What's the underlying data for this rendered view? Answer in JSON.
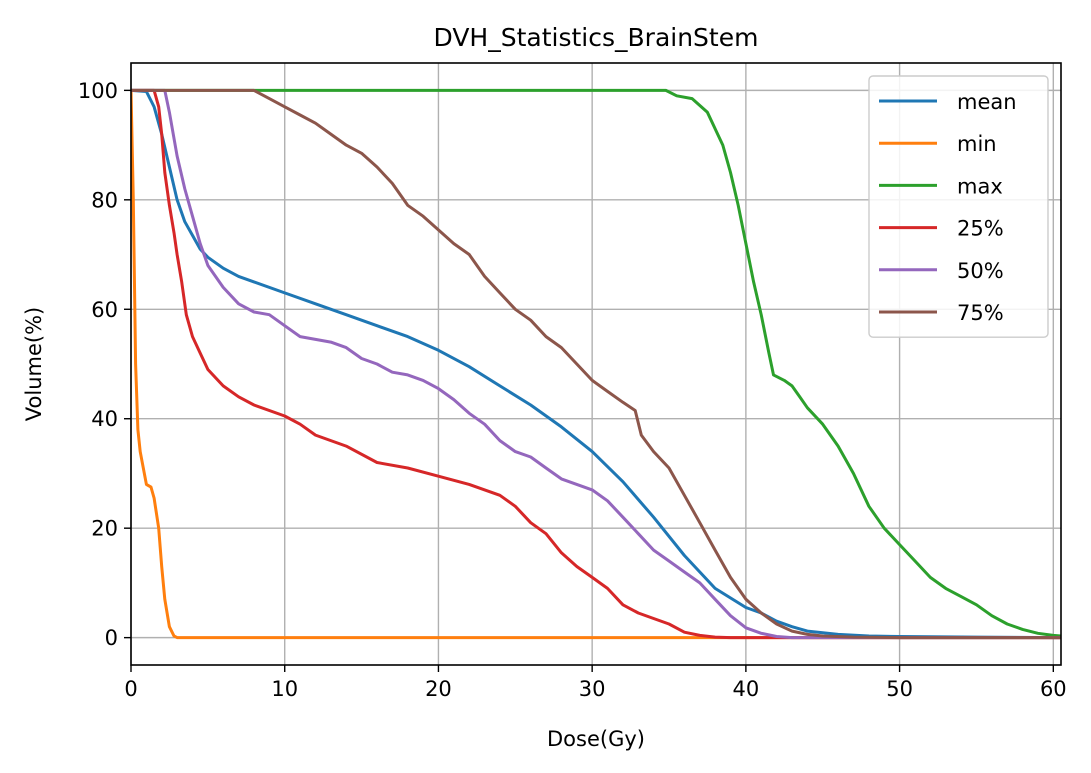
{
  "chart_data": {
    "type": "line",
    "title": "DVH_Statistics_BrainStem",
    "xlabel": "Dose(Gy)",
    "ylabel": "Volume(%)",
    "xlim": [
      0,
      60.5
    ],
    "ylim": [
      -5,
      105
    ],
    "xticks": [
      0,
      10,
      20,
      30,
      40,
      50,
      60
    ],
    "yticks": [
      0,
      20,
      40,
      60,
      80,
      100
    ],
    "grid": true,
    "legend_position": "top-right",
    "series": [
      {
        "name": "mean",
        "color": "#1f77b4",
        "points": [
          [
            0,
            100
          ],
          [
            1,
            99.8
          ],
          [
            1.5,
            97
          ],
          [
            2,
            92
          ],
          [
            2.5,
            86
          ],
          [
            3,
            80
          ],
          [
            3.5,
            76
          ],
          [
            4,
            73.5
          ],
          [
            4.5,
            71
          ],
          [
            5,
            69.5
          ],
          [
            6,
            67.5
          ],
          [
            7,
            66
          ],
          [
            8,
            65
          ],
          [
            10,
            63
          ],
          [
            12,
            61
          ],
          [
            14,
            59
          ],
          [
            16,
            57
          ],
          [
            18,
            55
          ],
          [
            20,
            52.5
          ],
          [
            22,
            49.5
          ],
          [
            24,
            46
          ],
          [
            26,
            42.5
          ],
          [
            28,
            38.5
          ],
          [
            30,
            34
          ],
          [
            32,
            28.5
          ],
          [
            34,
            22
          ],
          [
            36,
            15
          ],
          [
            38,
            9
          ],
          [
            40,
            5.5
          ],
          [
            41,
            4.5
          ],
          [
            42,
            3
          ],
          [
            43,
            2
          ],
          [
            44,
            1.2
          ],
          [
            46,
            0.6
          ],
          [
            48,
            0.3
          ],
          [
            50,
            0.2
          ],
          [
            55,
            0.1
          ],
          [
            60.5,
            0
          ]
        ]
      },
      {
        "name": "min",
        "color": "#ff7f0e",
        "points": [
          [
            0,
            100
          ],
          [
            0.15,
            80
          ],
          [
            0.3,
            50
          ],
          [
            0.45,
            38
          ],
          [
            0.6,
            34
          ],
          [
            0.8,
            31
          ],
          [
            1,
            28
          ],
          [
            1.3,
            27.5
          ],
          [
            1.5,
            25.5
          ],
          [
            1.8,
            20
          ],
          [
            2,
            13
          ],
          [
            2.2,
            7
          ],
          [
            2.5,
            2
          ],
          [
            2.8,
            0.3
          ],
          [
            3,
            0
          ],
          [
            60.5,
            0
          ]
        ]
      },
      {
        "name": "max",
        "color": "#2ca02c",
        "points": [
          [
            0,
            100
          ],
          [
            34.8,
            100
          ],
          [
            35.5,
            99
          ],
          [
            36.5,
            98.5
          ],
          [
            37.5,
            96
          ],
          [
            38,
            93
          ],
          [
            38.5,
            90
          ],
          [
            39,
            85
          ],
          [
            39.5,
            79
          ],
          [
            40,
            72
          ],
          [
            40.5,
            65
          ],
          [
            41,
            59
          ],
          [
            41.5,
            52
          ],
          [
            41.8,
            48
          ],
          [
            42.5,
            47
          ],
          [
            43,
            46
          ],
          [
            43.5,
            44
          ],
          [
            44,
            42
          ],
          [
            45,
            39
          ],
          [
            46,
            35
          ],
          [
            47,
            30
          ],
          [
            48,
            24
          ],
          [
            49,
            20
          ],
          [
            50,
            17
          ],
          [
            51,
            14
          ],
          [
            52,
            11
          ],
          [
            53,
            9
          ],
          [
            54,
            7.5
          ],
          [
            55,
            6
          ],
          [
            56,
            4
          ],
          [
            57,
            2.5
          ],
          [
            58,
            1.5
          ],
          [
            59,
            0.8
          ],
          [
            60,
            0.4
          ],
          [
            60.5,
            0.3
          ]
        ]
      },
      {
        "name": "25%",
        "color": "#d62728",
        "points": [
          [
            0,
            100
          ],
          [
            1.5,
            100
          ],
          [
            1.8,
            97
          ],
          [
            2,
            92
          ],
          [
            2.2,
            85
          ],
          [
            2.5,
            79
          ],
          [
            2.8,
            74
          ],
          [
            3,
            70
          ],
          [
            3.3,
            65
          ],
          [
            3.6,
            59
          ],
          [
            4,
            55
          ],
          [
            4.5,
            52
          ],
          [
            5,
            49
          ],
          [
            6,
            46
          ],
          [
            7,
            44
          ],
          [
            8,
            42.5
          ],
          [
            10,
            40.5
          ],
          [
            11,
            39
          ],
          [
            12,
            37
          ],
          [
            14,
            35
          ],
          [
            16,
            32
          ],
          [
            18,
            31
          ],
          [
            20,
            29.5
          ],
          [
            22,
            28
          ],
          [
            24,
            26
          ],
          [
            25,
            24
          ],
          [
            26,
            21
          ],
          [
            27,
            19
          ],
          [
            28,
            15.5
          ],
          [
            29,
            13
          ],
          [
            30,
            11
          ],
          [
            31,
            9
          ],
          [
            32,
            6
          ],
          [
            33,
            4.5
          ],
          [
            34,
            3.5
          ],
          [
            35,
            2.5
          ],
          [
            36,
            1
          ],
          [
            37,
            0.4
          ],
          [
            38,
            0.1
          ],
          [
            39,
            0
          ],
          [
            60.5,
            0
          ]
        ]
      },
      {
        "name": "50%",
        "color": "#9467bd",
        "points": [
          [
            0,
            100
          ],
          [
            2.2,
            100
          ],
          [
            2.5,
            96
          ],
          [
            3,
            88
          ],
          [
            3.5,
            82
          ],
          [
            4,
            77
          ],
          [
            4.5,
            72
          ],
          [
            5,
            68
          ],
          [
            6,
            64
          ],
          [
            7,
            61
          ],
          [
            8,
            59.5
          ],
          [
            9,
            59
          ],
          [
            10,
            57
          ],
          [
            11,
            55
          ],
          [
            12,
            54.5
          ],
          [
            13,
            54
          ],
          [
            14,
            53
          ],
          [
            15,
            51
          ],
          [
            16,
            50
          ],
          [
            17,
            48.5
          ],
          [
            18,
            48
          ],
          [
            19,
            47
          ],
          [
            20,
            45.5
          ],
          [
            21,
            43.5
          ],
          [
            22,
            41
          ],
          [
            23,
            39
          ],
          [
            24,
            36
          ],
          [
            25,
            34
          ],
          [
            26,
            33
          ],
          [
            27,
            31
          ],
          [
            28,
            29
          ],
          [
            29,
            28
          ],
          [
            30,
            27
          ],
          [
            31,
            25
          ],
          [
            32,
            22
          ],
          [
            33,
            19
          ],
          [
            34,
            16
          ],
          [
            35,
            14
          ],
          [
            36,
            12
          ],
          [
            37,
            10
          ],
          [
            38,
            7
          ],
          [
            39,
            4
          ],
          [
            40,
            1.8
          ],
          [
            41,
            0.8
          ],
          [
            42,
            0.2
          ],
          [
            43,
            0
          ],
          [
            60.5,
            0
          ]
        ]
      },
      {
        "name": "75%",
        "color": "#8c564b",
        "points": [
          [
            0,
            100
          ],
          [
            8,
            100
          ],
          [
            9,
            98.5
          ],
          [
            10,
            97
          ],
          [
            11,
            95.5
          ],
          [
            12,
            94
          ],
          [
            13,
            92
          ],
          [
            14,
            90
          ],
          [
            15,
            88.5
          ],
          [
            16,
            86
          ],
          [
            17,
            83
          ],
          [
            18,
            79
          ],
          [
            19,
            77
          ],
          [
            20,
            74.5
          ],
          [
            21,
            72
          ],
          [
            22,
            70
          ],
          [
            23,
            66
          ],
          [
            24,
            63
          ],
          [
            25,
            60
          ],
          [
            26,
            58
          ],
          [
            27,
            55
          ],
          [
            28,
            53
          ],
          [
            29,
            50
          ],
          [
            30,
            47
          ],
          [
            31,
            45
          ],
          [
            32,
            43
          ],
          [
            32.8,
            41.5
          ],
          [
            33.2,
            37
          ],
          [
            34,
            34
          ],
          [
            35,
            31
          ],
          [
            36,
            26
          ],
          [
            37,
            21
          ],
          [
            38,
            16
          ],
          [
            39,
            11
          ],
          [
            40,
            7
          ],
          [
            41,
            4.5
          ],
          [
            42,
            2.5
          ],
          [
            43,
            1.2
          ],
          [
            44,
            0.6
          ],
          [
            45,
            0.3
          ],
          [
            47,
            0.1
          ],
          [
            50,
            0
          ],
          [
            60.5,
            0
          ]
        ]
      }
    ]
  }
}
